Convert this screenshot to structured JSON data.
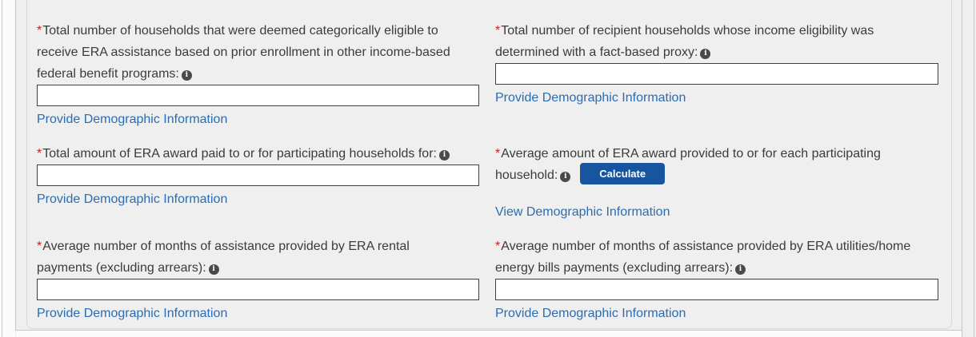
{
  "ui": {
    "required_marker": "*",
    "info_glyph": "i",
    "colors": {
      "required_red": "#c32128",
      "link_blue": "#2a6db3",
      "button_blue": "#17559f",
      "label_gray": "#3d3b39",
      "panel_bg": "#efeff0",
      "panel_border": "#c7c7c7",
      "box_border": "#d7d7d7",
      "input_border": "#3f3f3f",
      "info_icon_bg": "#4a4a4a"
    }
  },
  "form": {
    "fields": [
      {
        "id": "categorically-eligible-households",
        "required": true,
        "label_lines": [
          "Total number of households that were deemed categorically eligible to",
          "receive ERA assistance based on prior enrollment in other income-based",
          "federal benefit programs:"
        ],
        "control": "input",
        "value": "",
        "link": "Provide Demographic Information"
      },
      {
        "id": "fact-based-proxy-households",
        "required": true,
        "label_lines": [
          "Total number of recipient households whose income eligibility was",
          "determined with a fact-based proxy:"
        ],
        "control": "input",
        "value": "",
        "link": "Provide Demographic Information"
      },
      {
        "id": "total-era-award-paid",
        "required": true,
        "label_lines": [
          "Total amount of ERA award paid to or for participating households for:"
        ],
        "control": "input",
        "value": "",
        "link": "Provide Demographic Information"
      },
      {
        "id": "average-era-award",
        "required": true,
        "label_lines": [
          "Average amount of ERA award provided to or for each participating",
          "household:"
        ],
        "control": "button",
        "button_label": "Calculate",
        "link": "View Demographic Information"
      },
      {
        "id": "avg-months-rental-assistance",
        "required": true,
        "label_lines": [
          "Average number of months of assistance provided by ERA rental",
          "payments (excluding arrears):"
        ],
        "control": "input",
        "value": "",
        "link": "Provide Demographic Information"
      },
      {
        "id": "avg-months-utility-assistance",
        "required": true,
        "label_lines": [
          "Average number of months of assistance provided by ERA utilities/home",
          "energy bills payments (excluding arrears):"
        ],
        "control": "input",
        "value": "",
        "link": "Provide Demographic Information"
      }
    ]
  }
}
